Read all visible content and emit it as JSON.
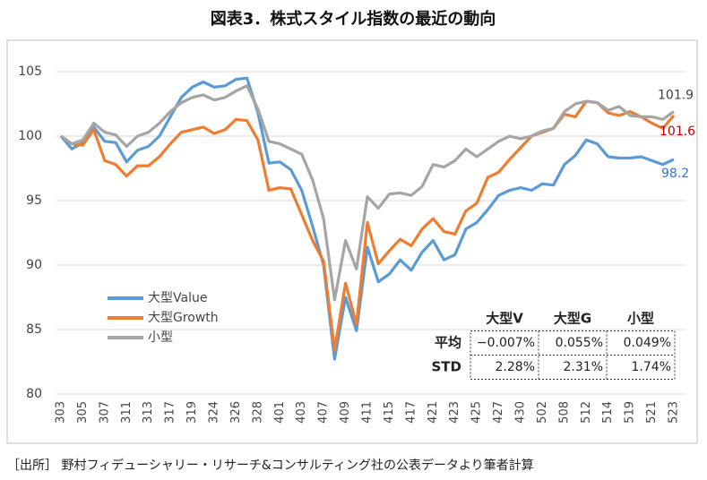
{
  "chart_data": {
    "type": "line",
    "title": "図表3．株式スタイル指数の最近の動向",
    "categories": [
      "303",
      null,
      "305",
      null,
      "307",
      null,
      "311",
      null,
      "313",
      null,
      "317",
      null,
      "319",
      null,
      "324",
      null,
      "326",
      null,
      "328",
      null,
      "401",
      null,
      "403",
      null,
      "407",
      null,
      "409",
      null,
      "411",
      null,
      "415",
      null,
      "417",
      null,
      "421",
      null,
      "423",
      null,
      "425",
      null,
      "427",
      null,
      "430",
      null,
      "502",
      null,
      "508",
      null,
      "512",
      null,
      "514",
      null,
      "519",
      null,
      "521",
      null,
      "523"
    ],
    "series": [
      {
        "name": "大型Value",
        "color": "#5b9bd5",
        "label_color": "#2e75d6",
        "values": [
          100,
          99.0,
          99.5,
          100.7,
          99.6,
          99.5,
          98.0,
          98.9,
          99.2,
          100.0,
          101.5,
          103.0,
          103.8,
          104.2,
          103.8,
          103.9,
          104.4,
          104.5,
          101.8,
          97.9,
          98.0,
          97.4,
          95.8,
          93.0,
          90.0,
          82.7,
          87.5,
          84.9,
          91.4,
          88.7,
          89.3,
          90.4,
          89.6,
          91.0,
          91.9,
          90.4,
          90.8,
          92.8,
          93.3,
          94.3,
          95.4,
          95.8,
          96.0,
          95.8,
          96.3,
          96.2,
          97.8,
          98.5,
          99.7,
          99.4,
          98.4,
          98.3,
          98.3,
          98.4,
          98.1,
          97.8,
          98.2
        ]
      },
      {
        "name": "大型Growth",
        "color": "#ed7d31",
        "label_color": "#c00000",
        "values": [
          100,
          99.4,
          99.3,
          100.5,
          98.1,
          97.8,
          96.9,
          97.7,
          97.7,
          98.4,
          99.4,
          100.3,
          100.5,
          100.7,
          100.2,
          100.5,
          101.3,
          101.2,
          99.7,
          95.8,
          96.0,
          95.9,
          93.9,
          91.9,
          90.3,
          83.4,
          88.6,
          85.4,
          93.3,
          90.1,
          91.1,
          92.0,
          91.5,
          92.8,
          93.6,
          92.6,
          92.4,
          94.2,
          94.8,
          96.8,
          97.2,
          98.2,
          99.1,
          100.0,
          100.3,
          100.6,
          101.7,
          101.5,
          102.7,
          102.6,
          101.8,
          101.6,
          101.9,
          101.5,
          101.0,
          100.6,
          101.6
        ]
      },
      {
        "name": "小型",
        "color": "#a5a5a5",
        "label_color": "#404040",
        "values": [
          100,
          99.4,
          99.7,
          101.0,
          100.3,
          100.1,
          99.2,
          100.0,
          100.3,
          101.0,
          101.9,
          102.6,
          103.0,
          103.2,
          102.8,
          103.0,
          103.5,
          103.9,
          102.1,
          99.6,
          99.4,
          99.0,
          98.6,
          96.6,
          93.6,
          87.3,
          91.9,
          89.7,
          95.3,
          94.4,
          95.5,
          95.6,
          95.4,
          96.1,
          97.8,
          97.6,
          98.1,
          99.0,
          98.4,
          99.0,
          99.6,
          100.0,
          99.8,
          100.0,
          100.4,
          100.6,
          101.9,
          102.5,
          102.7,
          102.6,
          102.0,
          102.3,
          101.6,
          101.5,
          101.5,
          101.3,
          101.9
        ]
      }
    ],
    "ylim": [
      80,
      105
    ],
    "yticks": [
      80,
      85,
      90,
      95,
      100,
      105
    ],
    "grid": true,
    "legend": "left",
    "table": {
      "columns": [
        "大型V",
        "大型G",
        "小型"
      ],
      "rows": [
        {
          "label": "平均",
          "cells": [
            "−0.007%",
            "0.055%",
            "0.049%"
          ]
        },
        {
          "label": "STD",
          "cells": [
            "2.28%",
            "2.31%",
            "1.74%"
          ]
        }
      ]
    }
  },
  "source": "［出所］ 野村フィデューシャリー・リサーチ&コンサルティング社の公表データより筆者計算"
}
